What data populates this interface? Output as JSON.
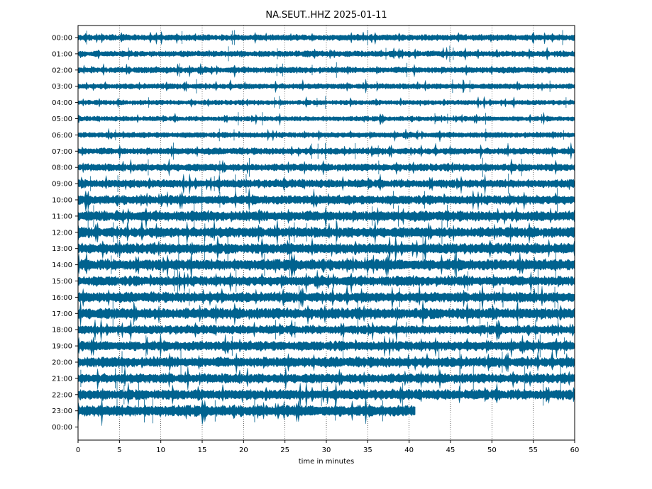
{
  "chart_data": {
    "type": "line",
    "title": "NA.SEUT..HHZ 2025-01-11",
    "xlabel": "time in minutes",
    "ylabel": "",
    "xlim": [
      0,
      60
    ],
    "x_ticks": [
      "0",
      "5",
      "10",
      "15",
      "20",
      "25",
      "30",
      "35",
      "40",
      "45",
      "50",
      "55",
      "60"
    ],
    "grid": "vertical dotted lines at each x tick",
    "trace_color": "#00628f",
    "rows": [
      {
        "label": "00:00",
        "end_minute": 60,
        "amplitude": 0.22
      },
      {
        "label": "01:00",
        "end_minute": 60,
        "amplitude": 0.22
      },
      {
        "label": "02:00",
        "end_minute": 60,
        "amplitude": 0.22
      },
      {
        "label": "03:00",
        "end_minute": 60,
        "amplitude": 0.2
      },
      {
        "label": "04:00",
        "end_minute": 60,
        "amplitude": 0.18
      },
      {
        "label": "05:00",
        "end_minute": 60,
        "amplitude": 0.18
      },
      {
        "label": "06:00",
        "end_minute": 60,
        "amplitude": 0.2
      },
      {
        "label": "07:00",
        "end_minute": 60,
        "amplitude": 0.24
      },
      {
        "label": "08:00",
        "end_minute": 60,
        "amplitude": 0.27
      },
      {
        "label": "09:00",
        "end_minute": 60,
        "amplitude": 0.3
      },
      {
        "label": "10:00",
        "end_minute": 60,
        "amplitude": 0.33
      },
      {
        "label": "11:00",
        "end_minute": 60,
        "amplitude": 0.37
      },
      {
        "label": "12:00",
        "end_minute": 60,
        "amplitude": 0.38
      },
      {
        "label": "13:00",
        "end_minute": 60,
        "amplitude": 0.38
      },
      {
        "label": "14:00",
        "end_minute": 60,
        "amplitude": 0.4
      },
      {
        "label": "15:00",
        "end_minute": 60,
        "amplitude": 0.36
      },
      {
        "label": "16:00",
        "end_minute": 60,
        "amplitude": 0.37
      },
      {
        "label": "17:00",
        "end_minute": 60,
        "amplitude": 0.4
      },
      {
        "label": "18:00",
        "end_minute": 60,
        "amplitude": 0.32
      },
      {
        "label": "19:00",
        "end_minute": 60,
        "amplitude": 0.35
      },
      {
        "label": "20:00",
        "end_minute": 60,
        "amplitude": 0.37
      },
      {
        "label": "21:00",
        "end_minute": 60,
        "amplitude": 0.35
      },
      {
        "label": "22:00",
        "end_minute": 60,
        "amplitude": 0.37
      },
      {
        "label": "23:00",
        "end_minute": 40.8,
        "amplitude": 0.4
      },
      {
        "label": "00:00",
        "end_minute": 0,
        "amplitude": 0
      }
    ]
  }
}
